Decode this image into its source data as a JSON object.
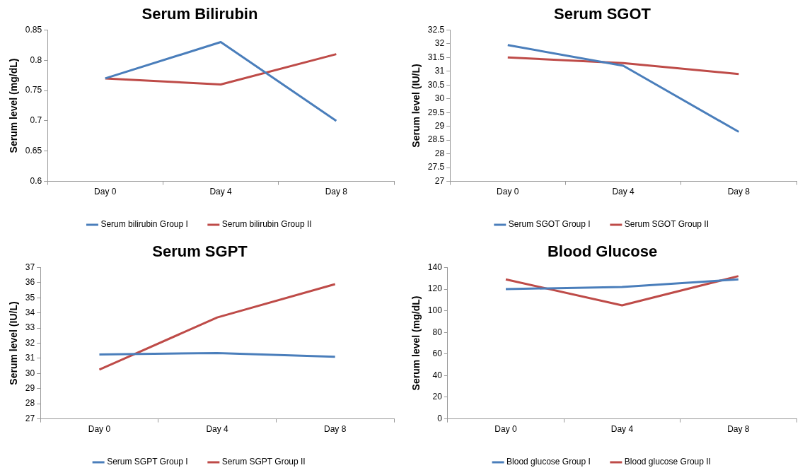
{
  "chart_data": [
    {
      "type": "line",
      "title": "Serum Bilirubin",
      "ylabel": "Serum level (mg/dL)",
      "categories": [
        "Day 0",
        "Day 4",
        "Day 8"
      ],
      "ylim": [
        0.6,
        0.85
      ],
      "yticks": [
        0.6,
        0.65,
        0.7,
        0.75,
        0.8,
        0.85
      ],
      "legend": "bottom",
      "series": [
        {
          "name": "Serum bilirubin Group I",
          "color": "#4a7ebb",
          "values": [
            0.77,
            0.83,
            0.7
          ]
        },
        {
          "name": "Serum bilirubin Group II",
          "color": "#be4b48",
          "values": [
            0.77,
            0.76,
            0.81
          ]
        }
      ]
    },
    {
      "type": "line",
      "title": "Serum SGOT",
      "ylabel": "Serum level (IU/L)",
      "categories": [
        "Day 0",
        "Day 4",
        "Day 8"
      ],
      "ylim": [
        27,
        32.5
      ],
      "yticks": [
        27,
        27.5,
        28,
        28.5,
        29,
        29.5,
        30,
        30.5,
        31,
        31.5,
        32,
        32.5
      ],
      "legend": "bottom",
      "series": [
        {
          "name": "Serum SGOT Group I",
          "color": "#4a7ebb",
          "values": [
            31.95,
            31.2,
            28.8
          ]
        },
        {
          "name": "Serum SGOT Group II",
          "color": "#be4b48",
          "values": [
            31.5,
            31.3,
            30.9
          ]
        }
      ]
    },
    {
      "type": "line",
      "title": "Serum SGPT",
      "ylabel": "Serum level (IU/L)",
      "categories": [
        "Day 0",
        "Day 4",
        "Day 8"
      ],
      "ylim": [
        27,
        37
      ],
      "yticks": [
        27,
        28,
        29,
        30,
        31,
        32,
        33,
        34,
        35,
        36,
        37
      ],
      "legend": "bottom",
      "series": [
        {
          "name": "Serum SGPT Group I",
          "color": "#4a7ebb",
          "values": [
            31.25,
            31.35,
            31.1
          ]
        },
        {
          "name": "Serum SGPT Group II",
          "color": "#be4b48",
          "values": [
            30.25,
            33.7,
            35.9
          ]
        }
      ]
    },
    {
      "type": "line",
      "title": "Blood Glucose",
      "ylabel": "Serum level (mg/dL)",
      "categories": [
        "Day 0",
        "Day 4",
        "Day 8"
      ],
      "ylim": [
        0,
        140
      ],
      "yticks": [
        0,
        20,
        40,
        60,
        80,
        100,
        120,
        140
      ],
      "legend": "bottom",
      "series": [
        {
          "name": "Blood glucose Group I",
          "color": "#4a7ebb",
          "values": [
            120,
            122,
            129
          ]
        },
        {
          "name": "Blood glucose Group II",
          "color": "#be4b48",
          "values": [
            129,
            105,
            132
          ]
        }
      ]
    }
  ]
}
